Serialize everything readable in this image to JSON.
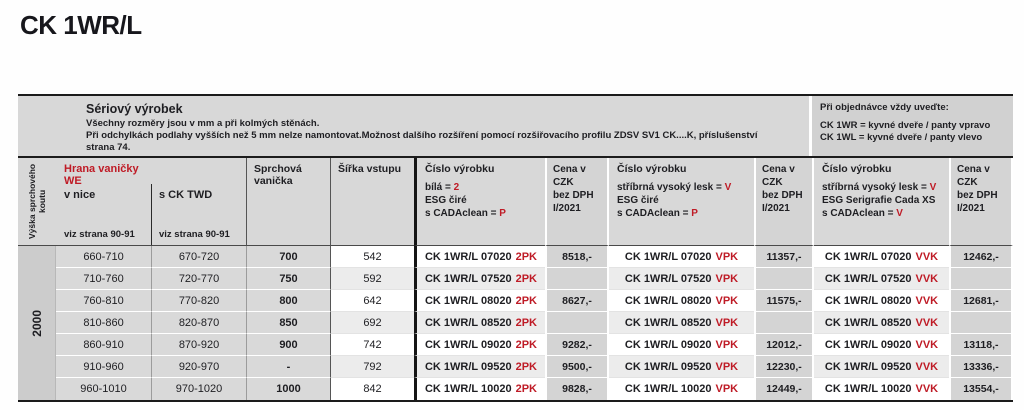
{
  "title": "CK 1WR/L",
  "info": {
    "heading": "Sériový výrobek",
    "line1": "Všechny rozměry jsou v mm a při kolmých stěnách.",
    "line2": "Při odchylkách podlahy vyšších než 5 mm nelze namontovat.Možnost dalšího rozšíření pomocí rozšiřovacího profilu ZDSV SV1 CK....K, příslušenství",
    "line3": "strana 74."
  },
  "order_note": {
    "heading": "Při objednávce vždy uveďte:",
    "line1": "CK 1WR = kyvné dveře / panty vpravo",
    "line2": "CK 1WL = kyvné dveře / panty vlevo"
  },
  "columns": {
    "height": "Výška sprchového koutu",
    "edge_line1": "Hrana vaničky",
    "edge_line2": "WE",
    "v_nice": "v nice",
    "s_ck_twd": "s CK TWD",
    "see_pages": "viz strana 90-91",
    "tray": "Sprchová vanička",
    "entry_width": "Šířka vstupu",
    "product_no": "Číslo výrobku",
    "white_label": "bílá = ",
    "white_code": "2",
    "esg_clear": "ESG čiré",
    "esg_serigrafie": "ESG Serigrafie Cada XS",
    "silver_label": "stříbrná vysoký lesk = ",
    "silver_code": "V",
    "cada_label": "s CADAclean = ",
    "cada_code_p": "P",
    "cada_code_v": "V",
    "price_line1": "Cena v CZK",
    "price_line2": "bez DPH",
    "price_line3": "I/2021"
  },
  "height_value": "2000",
  "suffixes": {
    "white": "2PK",
    "silver": "VPK",
    "serigrafie": "VVK"
  },
  "colors": {
    "accent_red": "#bf1b26",
    "band_gray": "#d8d8d8",
    "stripe_gray": "#ececec"
  },
  "rows": [
    {
      "vnice": "660-710",
      "stwd": "670-720",
      "tray": "700",
      "width": "542",
      "code": "CK 1WR/L 07020",
      "p2": "8518,-",
      "pv": "11357,-",
      "pvv": "12462,-"
    },
    {
      "vnice": "710-760",
      "stwd": "720-770",
      "tray": "750",
      "width": "592",
      "code": "CK 1WR/L 07520",
      "p2": "",
      "pv": "",
      "pvv": ""
    },
    {
      "vnice": "760-810",
      "stwd": "770-820",
      "tray": "800",
      "width": "642",
      "code": "CK 1WR/L 08020",
      "p2": "8627,-",
      "pv": "11575,-",
      "pvv": "12681,-"
    },
    {
      "vnice": "810-860",
      "stwd": "820-870",
      "tray": "850",
      "width": "692",
      "code": "CK 1WR/L 08520",
      "p2": "",
      "pv": "",
      "pvv": ""
    },
    {
      "vnice": "860-910",
      "stwd": "870-920",
      "tray": "900",
      "width": "742",
      "code": "CK 1WR/L 09020",
      "p2": "9282,-",
      "pv": "12012,-",
      "pvv": "13118,-"
    },
    {
      "vnice": "910-960",
      "stwd": "920-970",
      "tray": "-",
      "width": "792",
      "code": "CK 1WR/L 09520",
      "p2": "9500,-",
      "pv": "12230,-",
      "pvv": "13336,-"
    },
    {
      "vnice": "960-1010",
      "stwd": "970-1020",
      "tray": "1000",
      "width": "842",
      "code": "CK 1WR/L 10020",
      "p2": "9828,-",
      "pv": "12449,-",
      "pvv": "13554,-"
    }
  ]
}
